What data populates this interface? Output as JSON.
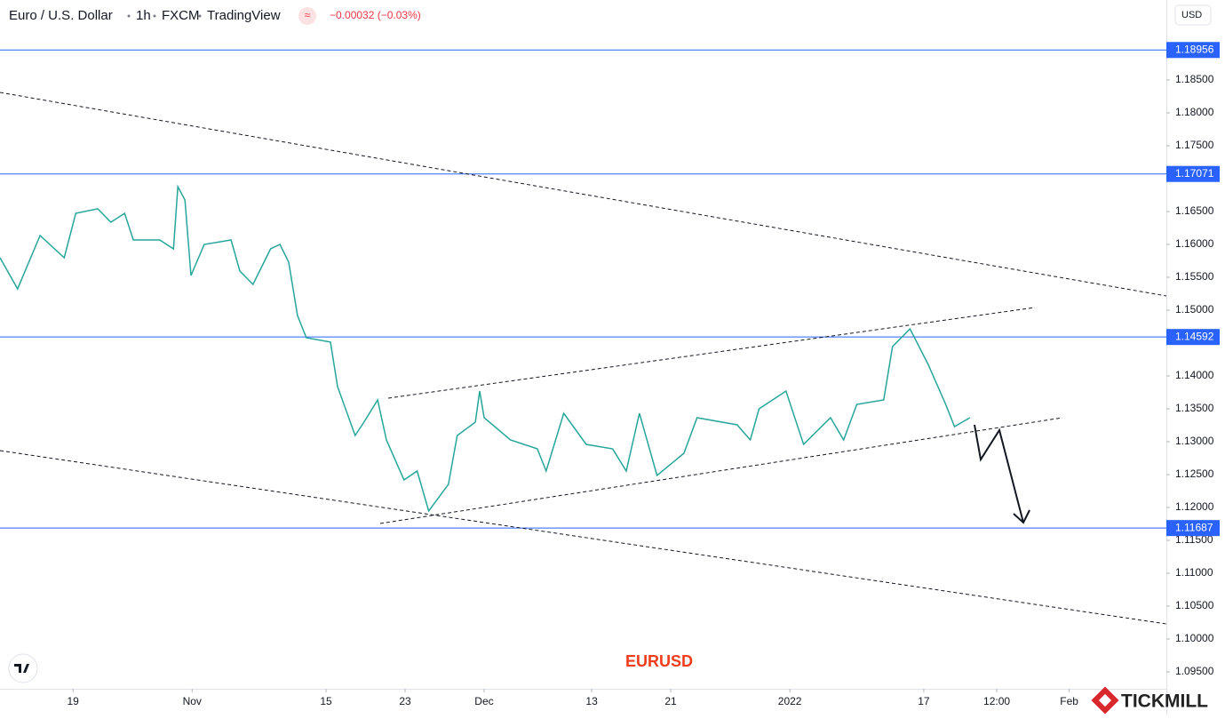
{
  "chart_data": {
    "type": "line",
    "title": "Euro / U.S. Dollar",
    "interval": "1h",
    "source": "FXCM",
    "platform": "TradingView",
    "change": "−0.00032 (−0.03%)",
    "currency": "USD",
    "annotation": "EURUSD",
    "brand": "TICKMILL",
    "color": "#26a69a",
    "level_color": "#2962ff",
    "x": [
      0,
      32,
      73,
      117,
      138,
      178,
      202,
      227,
      243,
      291,
      316,
      324,
      337,
      348,
      372,
      421,
      437,
      461,
      493,
      510,
      526,
      542,
      558,
      602,
      615,
      647,
      663,
      688,
      704,
      736,
      760,
      781,
      817,
      833,
      866,
      874,
      882,
      930,
      979,
      995,
      1027,
      1068,
      1116,
      1141,
      1165,
      1197,
      1246,
      1270,
      1343,
      1367,
      1383,
      1432,
      1464,
      1513,
      1537,
      1561,
      1610,
      1626,
      1658,
      1691,
      1723,
      1739,
      1767
    ],
    "values": [
      1.15797,
      1.15324,
      1.16135,
      1.15797,
      1.16473,
      1.16541,
      1.16338,
      1.16473,
      1.16068,
      1.16068,
      1.15932,
      1.16878,
      1.16676,
      1.15527,
      1.16,
      1.16068,
      1.15595,
      1.15392,
      1.15932,
      1.16,
      1.1573,
      1.14919,
      1.14581,
      1.14514,
      1.13838,
      1.13095,
      1.13297,
      1.13635,
      1.13027,
      1.12419,
      1.12554,
      1.11946,
      1.12351,
      1.13095,
      1.13297,
      1.1377,
      1.13365,
      1.13027,
      1.12892,
      1.12554,
      1.13432,
      1.12959,
      1.12892,
      1.12554,
      1.13432,
      1.12487,
      1.12824,
      1.13365,
      1.13257,
      1.13027,
      1.135,
      1.1377,
      1.12959,
      1.13365,
      1.13027,
      1.13568,
      1.13635,
      1.14446,
      1.14716,
      1.14176,
      1.13568,
      1.13229,
      1.13365
    ],
    "xlim": [
      0,
      2125
    ],
    "xticks": [
      {
        "value": 133,
        "label": "19"
      },
      {
        "value": 350,
        "label": "Nov"
      },
      {
        "value": 594,
        "label": "15"
      },
      {
        "value": 738,
        "label": "23"
      },
      {
        "value": 882,
        "label": "Dec"
      },
      {
        "value": 1078,
        "label": "13"
      },
      {
        "value": 1222,
        "label": "21"
      },
      {
        "value": 1439,
        "label": "2022"
      },
      {
        "value": 1683,
        "label": "17"
      },
      {
        "value": 1816,
        "label": "12:00"
      },
      {
        "value": 1948,
        "label": "Feb"
      }
    ],
    "ylim": [
      1.09243,
      1.19716
    ],
    "yticks": [
      {
        "value": 1.185,
        "label": "1.18500"
      },
      {
        "value": 1.18,
        "label": "1.18000"
      },
      {
        "value": 1.175,
        "label": "1.17500"
      },
      {
        "value": 1.165,
        "label": "1.16500"
      },
      {
        "value": 1.16,
        "label": "1.16000"
      },
      {
        "value": 1.155,
        "label": "1.15500"
      },
      {
        "value": 1.15,
        "label": "1.15000"
      },
      {
        "value": 1.14,
        "label": "1.14000"
      },
      {
        "value": 1.135,
        "label": "1.13500"
      },
      {
        "value": 1.13,
        "label": "1.13000"
      },
      {
        "value": 1.125,
        "label": "1.12500"
      },
      {
        "value": 1.12,
        "label": "1.12000"
      },
      {
        "value": 1.115,
        "label": "1.11500"
      },
      {
        "value": 1.11,
        "label": "1.11000"
      },
      {
        "value": 1.105,
        "label": "1.10500"
      },
      {
        "value": 1.1,
        "label": "1.10000"
      },
      {
        "value": 1.095,
        "label": "1.09500"
      }
    ],
    "levels": [
      1.18956,
      1.17071,
      1.14592,
      1.11687
    ]
  }
}
